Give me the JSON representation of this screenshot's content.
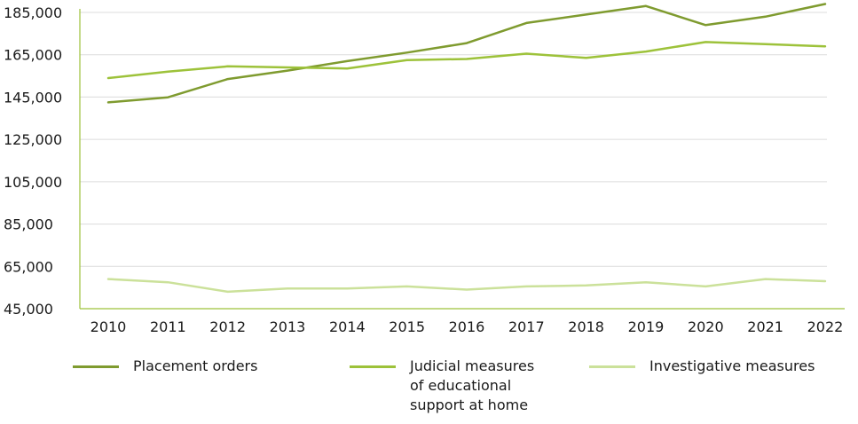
{
  "chart_data": {
    "type": "line",
    "title": "",
    "xlabel": "",
    "ylabel": "",
    "x": [
      "2010",
      "2011",
      "2012",
      "2013",
      "2014",
      "2015",
      "2016",
      "2017",
      "2018",
      "2019",
      "2020",
      "2021",
      "2022"
    ],
    "ylim": [
      45000,
      185000
    ],
    "yticks": [
      "45,000",
      "65,000",
      "85,000",
      "105,000",
      "125,000",
      "145,000",
      "165,000",
      "185,000"
    ],
    "ytick_values": [
      45000,
      65000,
      85000,
      105000,
      125000,
      145000,
      165000,
      185000
    ],
    "grid": "horizontal",
    "legend_position": "bottom",
    "series": [
      {
        "name": "Placement orders",
        "color": "#7f9b2f",
        "values": [
          142500,
          144900,
          153500,
          157500,
          162000,
          166000,
          170500,
          180000,
          184000,
          188000,
          179000,
          183000,
          189000
        ]
      },
      {
        "name": "Judicial measures\nof educational\nsupport at home",
        "color": "#9dc23a",
        "values": [
          154000,
          157000,
          159500,
          159000,
          158500,
          162500,
          163000,
          165500,
          163500,
          166500,
          171000,
          170000,
          169000
        ]
      },
      {
        "name": "Investigative measures",
        "color": "#cbe19a",
        "values": [
          59000,
          57500,
          53000,
          54500,
          54500,
          55500,
          54000,
          55500,
          56000,
          57500,
          55500,
          59000,
          58000
        ]
      }
    ]
  }
}
